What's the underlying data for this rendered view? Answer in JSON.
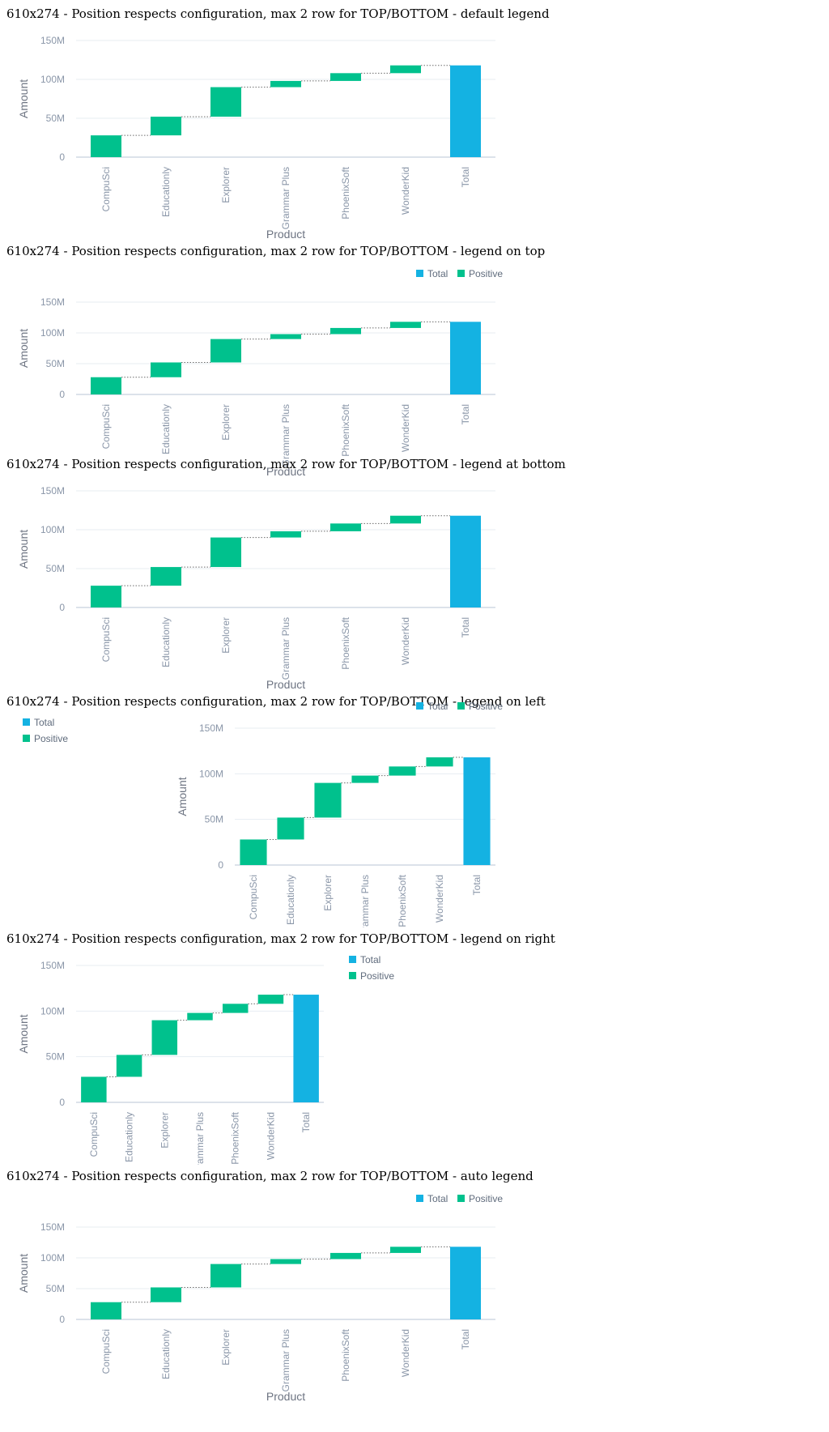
{
  "colors": {
    "total": "#14b2e2",
    "positive": "#00c18d",
    "grid": "#e7edf2",
    "axis": "#b9c6d6",
    "connector": "#6c6c6c"
  },
  "legend": {
    "items": [
      {
        "key": "total",
        "label": "Total"
      },
      {
        "key": "positive",
        "label": "Positive"
      }
    ]
  },
  "sections": [
    {
      "title": "610x274 - Position respects configuration, max 2 row for TOP/BOTTOM - default legend",
      "legend_position": "none"
    },
    {
      "title": "610x274 - Position respects configuration, max 2 row for TOP/BOTTOM - legend on top",
      "legend_position": "top"
    },
    {
      "title": "610x274 - Position respects configuration, max 2 row for TOP/BOTTOM - legend at bottom",
      "legend_position": "bottom"
    },
    {
      "title": "610x274 - Position respects configuration, max 2 row for TOP/BOTTOM - legend on left",
      "legend_position": "left"
    },
    {
      "title": "610x274 - Position respects configuration, max 2 row for TOP/BOTTOM - legend on right",
      "legend_position": "right"
    },
    {
      "title": "610x274 - Position respects configuration, max 2 row for TOP/BOTTOM - auto legend",
      "legend_position": "top"
    }
  ],
  "chart_data": {
    "type": "waterfall",
    "categories": [
      "CompuSci",
      "Educationly",
      "Explorer",
      "Grammar Plus",
      "PhoenixSoft",
      "WonderKid",
      "Total"
    ],
    "values": [
      28000000,
      24000000,
      38000000,
      8000000,
      10000000,
      10000000,
      118000000
    ],
    "xlabel": "Product",
    "ylabel": "Amount",
    "ylim": [
      0,
      150000000
    ],
    "yticks": [
      {
        "value": 0,
        "label": "0"
      },
      {
        "value": 50000000,
        "label": "50M"
      },
      {
        "value": 100000000,
        "label": "100M"
      },
      {
        "value": 150000000,
        "label": "150M"
      }
    ],
    "grid": true
  }
}
